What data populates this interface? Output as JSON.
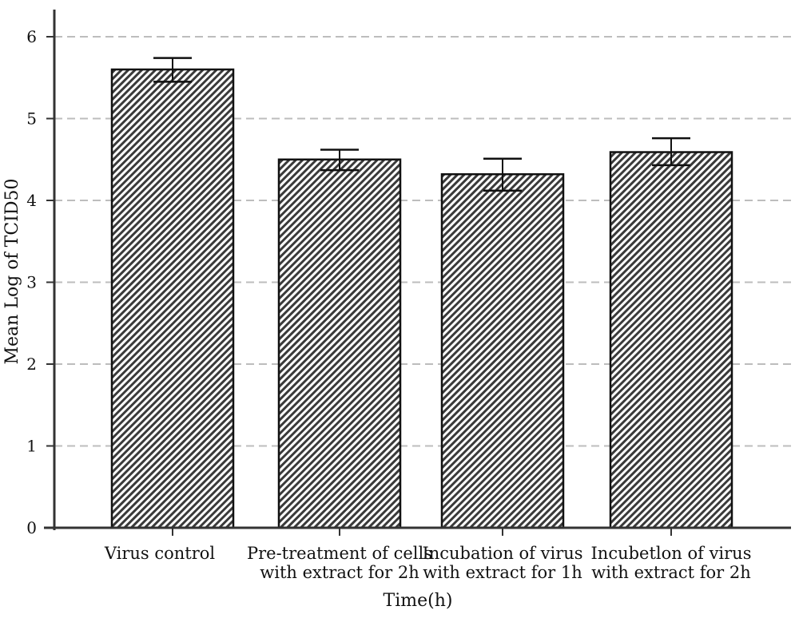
{
  "chart_data": {
    "type": "bar",
    "title": "",
    "xlabel": "Time(h)",
    "ylabel": "Mean Log of TCID50",
    "ylim": [
      0,
      6.2
    ],
    "yticks": [
      0,
      1,
      2,
      3,
      4,
      5,
      6
    ],
    "grid": "horizontal dashed",
    "categories": [
      [
        "Virus control"
      ],
      [
        "Pre-treatment of cells",
        "with extract for 2h"
      ],
      [
        "Incubation of virus",
        "with extract for 1h"
      ],
      [
        "Incubetlon of virus",
        "with extract for 2h"
      ]
    ],
    "values": [
      5.6,
      4.5,
      4.32,
      4.59
    ],
    "error_low": [
      5.45,
      4.37,
      4.12,
      4.43
    ],
    "error_high": [
      5.74,
      4.62,
      4.51,
      4.76
    ],
    "bar_fill": "diagonal hatch",
    "colors": {
      "bar_stroke": "#111111",
      "hatch_dark": "#3a3a3a",
      "hatch_light": "#ffffff",
      "grid": "#bdbdbd",
      "axis": "#333333"
    }
  }
}
